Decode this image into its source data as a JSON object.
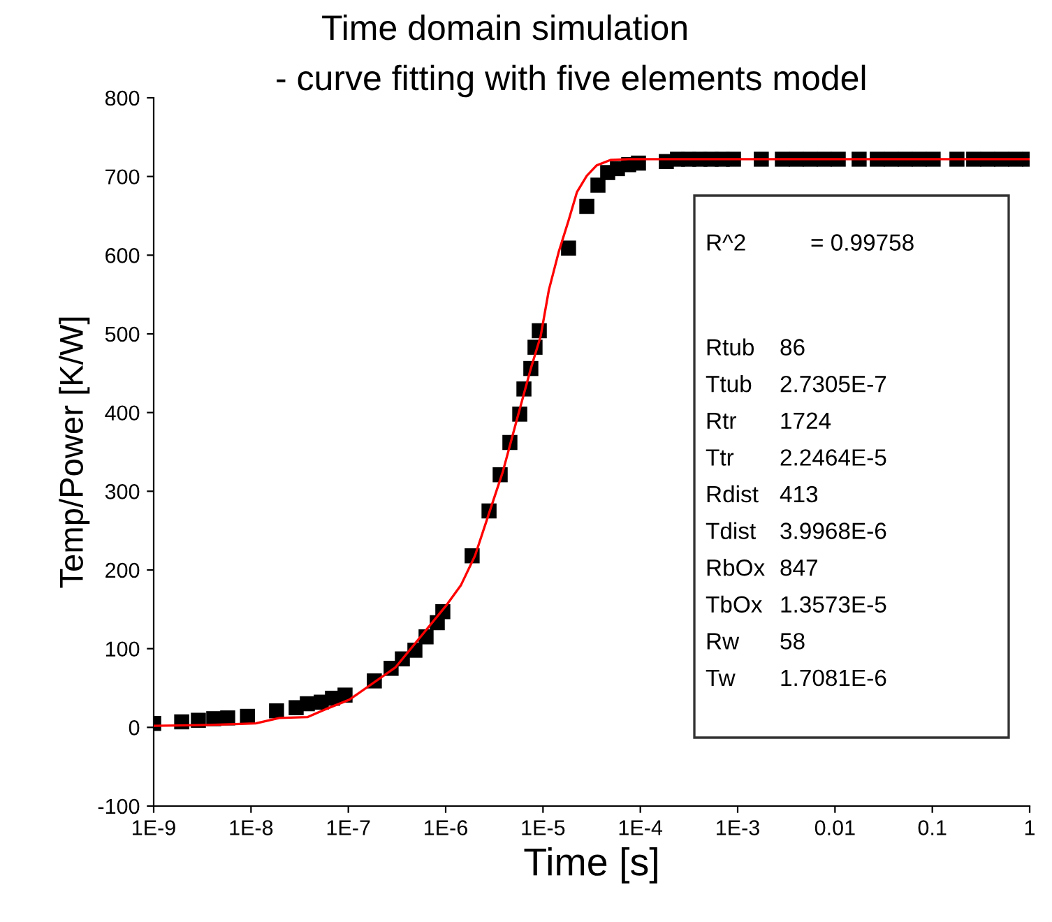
{
  "chart_data": {
    "type": "scatter",
    "title": "Time domain simulation",
    "subtitle": "- curve fitting with five elements model",
    "xlabel": "Time [s]",
    "ylabel": "Temp/Power [K/W]",
    "log": "x",
    "grid": false,
    "legend": false,
    "xlim": [
      1e-09,
      1
    ],
    "ylim": [
      -100,
      800
    ],
    "xticks": [
      {
        "value": 1e-09,
        "label": "1E-9"
      },
      {
        "value": 1e-08,
        "label": "1E-8"
      },
      {
        "value": 1e-07,
        "label": "1E-7"
      },
      {
        "value": 1e-06,
        "label": "1E-6"
      },
      {
        "value": 1e-05,
        "label": "1E-5"
      },
      {
        "value": 0.0001,
        "label": "1E-4"
      },
      {
        "value": 0.001,
        "label": "1E-3"
      },
      0.01,
      0.1,
      1
    ],
    "yticks": [
      -100,
      0,
      100,
      200,
      300,
      400,
      500,
      600,
      700,
      800
    ],
    "series": [
      {
        "marker": "square",
        "color": "#000000",
        "x": [
          1e-09,
          1.94e-09,
          2.88e-09,
          4.14e-09,
          5.76e-09,
          9.2e-09,
          1.83e-08,
          2.91e-08,
          3.79e-08,
          5.27e-08,
          6.87e-08,
          9.25e-08,
          1.85e-07,
          2.75e-07,
          3.59e-07,
          4.83e-07,
          6.29e-07,
          8.2e-07,
          9.35e-07,
          1.87e-06,
          2.79e-06,
          3.63e-06,
          4.57e-06,
          5.77e-06,
          6.37e-06,
          7.5e-06,
          8.28e-06,
          9.16e-06,
          1.83e-05,
          2.82e-05,
          3.67e-05,
          4.62e-05,
          5.82e-05,
          7.59e-05,
          9.57e-05,
          0.000185,
          0.000241,
          0.000314,
          0.000409,
          0.000533,
          0.000695,
          0.000906,
          0.00175,
          0.00288,
          0.004,
          0.00557,
          0.00776,
          0.0108,
          0.0177,
          0.0272,
          0.0379,
          0.0527,
          0.0734,
          0.102,
          0.179,
          0.266,
          0.371,
          0.515,
          0.718,
          1
        ],
        "values": [
          5,
          7,
          9,
          11,
          12,
          14,
          21,
          25,
          30,
          32,
          37,
          41,
          59,
          75,
          87,
          98,
          115,
          133,
          147,
          218,
          275,
          321,
          362,
          398,
          430,
          456,
          483,
          504,
          609,
          662,
          689,
          705,
          710,
          715,
          717,
          719,
          722,
          722,
          722,
          722,
          722,
          722,
          722,
          722,
          722,
          722,
          722,
          722,
          722,
          722,
          722,
          722,
          722,
          722,
          722,
          722,
          722,
          722,
          722,
          722
        ]
      },
      {
        "type": "line",
        "marker": "none",
        "line_style": "solid",
        "color": "#ff0000",
        "x": [
          1e-09,
          3.73e-09,
          1.12e-08,
          1.96e-08,
          3.79e-08,
          5.83e-08,
          1.02e-07,
          3.04e-07,
          1.03e-06,
          1.44e-06,
          2e-06,
          2.79e-06,
          3.87e-06,
          5.39e-06,
          7.5e-06,
          9.46e-06,
          1.15e-05,
          1.45e-05,
          1.83e-05,
          2.23e-05,
          2.82e-05,
          3.55e-05,
          4.94e-05,
          7.59e-05,
          0.000205,
          1
        ],
        "values": [
          2,
          3,
          5,
          12,
          13,
          23,
          35,
          76,
          156,
          181,
          218,
          272,
          325,
          391,
          456,
          497,
          556,
          604,
          644,
          680,
          701,
          714,
          721,
          722,
          722,
          722
        ]
      }
    ],
    "annotations": [
      "R^2 = 0.99758",
      "Rtub 86",
      "Ttub 2.7305E-7",
      "Rtr 1724",
      "Ttr 2.2464E-5",
      "Rdist 413",
      "Tdist 3.9968E-6",
      "RbOx 847",
      "TbOx 1.3573E-5",
      "Rw 58",
      "Tw 1.7081E-6"
    ]
  }
}
